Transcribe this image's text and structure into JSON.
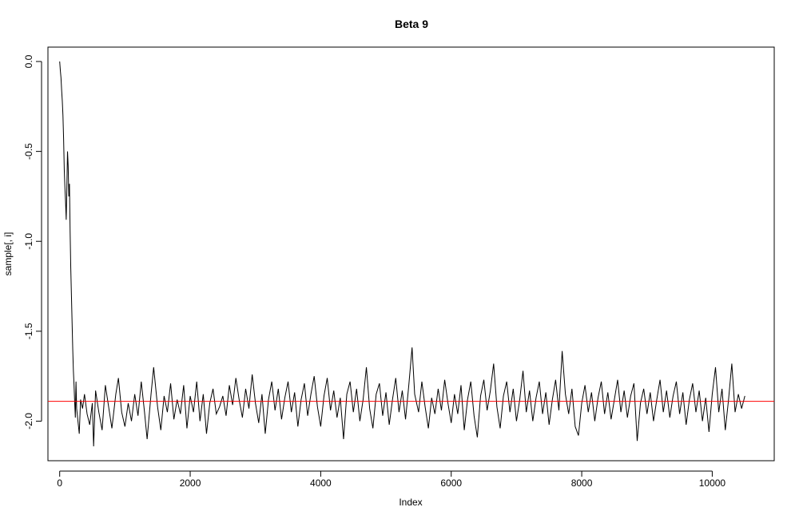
{
  "chart_data": {
    "type": "line",
    "title": "Beta 9",
    "xlabel": "Index",
    "ylabel": "sample[, i]",
    "xlim": [
      -180,
      10950
    ],
    "ylim": [
      -2.22,
      0.08
    ],
    "x_ticks": [
      0,
      2000,
      4000,
      6000,
      8000,
      10000
    ],
    "x_tick_labels": [
      "0",
      "2000",
      "4000",
      "6000",
      "8000",
      "10000"
    ],
    "y_ticks": [
      0.0,
      -0.5,
      -1.0,
      -1.5,
      -2.0
    ],
    "y_tick_labels": [
      "0.0",
      "-0.5",
      "-1.0",
      "-1.5",
      "-2.0"
    ],
    "grid": false,
    "series": [
      {
        "color": "#000000",
        "points": [
          [
            0,
            0.0
          ],
          [
            10,
            -0.05
          ],
          [
            20,
            -0.09
          ],
          [
            30,
            -0.16
          ],
          [
            40,
            -0.22
          ],
          [
            50,
            -0.3
          ],
          [
            60,
            -0.43
          ],
          [
            70,
            -0.6
          ],
          [
            80,
            -0.7
          ],
          [
            90,
            -0.78
          ],
          [
            100,
            -0.88
          ],
          [
            110,
            -0.7
          ],
          [
            120,
            -0.5
          ],
          [
            130,
            -0.58
          ],
          [
            140,
            -0.75
          ],
          [
            150,
            -0.68
          ],
          [
            160,
            -0.95
          ],
          [
            170,
            -1.15
          ],
          [
            180,
            -1.3
          ],
          [
            190,
            -1.45
          ],
          [
            200,
            -1.6
          ],
          [
            210,
            -1.72
          ],
          [
            220,
            -1.8
          ],
          [
            230,
            -1.9
          ],
          [
            240,
            -1.98
          ],
          [
            250,
            -1.78
          ],
          [
            260,
            -1.93
          ],
          [
            280,
            -2.0
          ],
          [
            300,
            -2.07
          ],
          [
            320,
            -1.88
          ],
          [
            350,
            -1.93
          ],
          [
            380,
            -1.85
          ],
          [
            420,
            -1.96
          ],
          [
            460,
            -2.02
          ],
          [
            500,
            -1.9
          ],
          [
            520,
            -2.14
          ],
          [
            550,
            -1.83
          ],
          [
            600,
            -1.95
          ],
          [
            650,
            -2.05
          ],
          [
            700,
            -1.8
          ],
          [
            750,
            -1.92
          ],
          [
            800,
            -2.04
          ],
          [
            860,
            -1.85
          ],
          [
            900,
            -1.76
          ],
          [
            950,
            -1.95
          ],
          [
            1000,
            -2.03
          ],
          [
            1050,
            -1.9
          ],
          [
            1100,
            -2.0
          ],
          [
            1150,
            -1.85
          ],
          [
            1200,
            -1.97
          ],
          [
            1250,
            -1.78
          ],
          [
            1300,
            -1.95
          ],
          [
            1340,
            -2.1
          ],
          [
            1400,
            -1.85
          ],
          [
            1440,
            -1.7
          ],
          [
            1500,
            -1.92
          ],
          [
            1550,
            -2.05
          ],
          [
            1600,
            -1.86
          ],
          [
            1650,
            -1.95
          ],
          [
            1700,
            -1.79
          ],
          [
            1750,
            -1.99
          ],
          [
            1800,
            -1.88
          ],
          [
            1850,
            -1.96
          ],
          [
            1900,
            -1.8
          ],
          [
            1950,
            -2.04
          ],
          [
            2000,
            -1.86
          ],
          [
            2050,
            -1.95
          ],
          [
            2100,
            -1.78
          ],
          [
            2150,
            -2.0
          ],
          [
            2200,
            -1.85
          ],
          [
            2250,
            -2.07
          ],
          [
            2300,
            -1.9
          ],
          [
            2350,
            -1.82
          ],
          [
            2400,
            -1.96
          ],
          [
            2450,
            -1.92
          ],
          [
            2500,
            -1.86
          ],
          [
            2550,
            -1.97
          ],
          [
            2600,
            -1.8
          ],
          [
            2650,
            -1.91
          ],
          [
            2700,
            -1.76
          ],
          [
            2750,
            -1.88
          ],
          [
            2800,
            -1.98
          ],
          [
            2850,
            -1.82
          ],
          [
            2900,
            -1.93
          ],
          [
            2950,
            -1.74
          ],
          [
            3000,
            -1.9
          ],
          [
            3050,
            -2.01
          ],
          [
            3100,
            -1.85
          ],
          [
            3150,
            -2.07
          ],
          [
            3200,
            -1.88
          ],
          [
            3250,
            -1.78
          ],
          [
            3300,
            -1.94
          ],
          [
            3350,
            -1.82
          ],
          [
            3400,
            -1.99
          ],
          [
            3450,
            -1.87
          ],
          [
            3500,
            -1.78
          ],
          [
            3550,
            -1.95
          ],
          [
            3600,
            -1.84
          ],
          [
            3650,
            -2.03
          ],
          [
            3700,
            -1.88
          ],
          [
            3750,
            -1.79
          ],
          [
            3800,
            -1.97
          ],
          [
            3850,
            -1.85
          ],
          [
            3900,
            -1.75
          ],
          [
            3950,
            -1.92
          ],
          [
            4000,
            -2.03
          ],
          [
            4050,
            -1.86
          ],
          [
            4100,
            -1.76
          ],
          [
            4150,
            -1.94
          ],
          [
            4200,
            -1.83
          ],
          [
            4250,
            -1.98
          ],
          [
            4300,
            -1.87
          ],
          [
            4350,
            -2.1
          ],
          [
            4400,
            -1.85
          ],
          [
            4450,
            -1.78
          ],
          [
            4500,
            -1.95
          ],
          [
            4550,
            -1.82
          ],
          [
            4600,
            -2.0
          ],
          [
            4650,
            -1.88
          ],
          [
            4700,
            -1.7
          ],
          [
            4750,
            -1.93
          ],
          [
            4800,
            -2.04
          ],
          [
            4850,
            -1.85
          ],
          [
            4900,
            -1.79
          ],
          [
            4950,
            -1.97
          ],
          [
            5000,
            -1.84
          ],
          [
            5050,
            -2.02
          ],
          [
            5100,
            -1.88
          ],
          [
            5150,
            -1.76
          ],
          [
            5200,
            -1.95
          ],
          [
            5250,
            -1.83
          ],
          [
            5300,
            -1.99
          ],
          [
            5350,
            -1.8
          ],
          [
            5400,
            -1.59
          ],
          [
            5440,
            -1.85
          ],
          [
            5500,
            -1.95
          ],
          [
            5550,
            -1.78
          ],
          [
            5600,
            -1.92
          ],
          [
            5650,
            -2.04
          ],
          [
            5700,
            -1.87
          ],
          [
            5750,
            -1.96
          ],
          [
            5800,
            -1.82
          ],
          [
            5850,
            -1.94
          ],
          [
            5900,
            -1.77
          ],
          [
            5950,
            -1.9
          ],
          [
            6000,
            -2.01
          ],
          [
            6050,
            -1.85
          ],
          [
            6100,
            -1.96
          ],
          [
            6150,
            -1.8
          ],
          [
            6200,
            -2.05
          ],
          [
            6250,
            -1.88
          ],
          [
            6300,
            -1.78
          ],
          [
            6350,
            -1.97
          ],
          [
            6400,
            -2.09
          ],
          [
            6450,
            -1.86
          ],
          [
            6500,
            -1.77
          ],
          [
            6550,
            -1.94
          ],
          [
            6600,
            -1.83
          ],
          [
            6650,
            -1.68
          ],
          [
            6700,
            -1.92
          ],
          [
            6750,
            -2.04
          ],
          [
            6800,
            -1.86
          ],
          [
            6850,
            -1.78
          ],
          [
            6900,
            -1.95
          ],
          [
            6950,
            -1.82
          ],
          [
            7000,
            -2.0
          ],
          [
            7050,
            -1.88
          ],
          [
            7100,
            -1.72
          ],
          [
            7150,
            -1.95
          ],
          [
            7200,
            -1.83
          ],
          [
            7250,
            -2.0
          ],
          [
            7300,
            -1.87
          ],
          [
            7350,
            -1.78
          ],
          [
            7400,
            -1.96
          ],
          [
            7450,
            -1.84
          ],
          [
            7500,
            -2.02
          ],
          [
            7550,
            -1.88
          ],
          [
            7600,
            -1.77
          ],
          [
            7650,
            -1.94
          ],
          [
            7700,
            -1.61
          ],
          [
            7750,
            -1.85
          ],
          [
            7800,
            -1.96
          ],
          [
            7850,
            -1.82
          ],
          [
            7900,
            -2.03
          ],
          [
            7950,
            -2.08
          ],
          [
            8000,
            -1.9
          ],
          [
            8050,
            -1.8
          ],
          [
            8100,
            -1.95
          ],
          [
            8150,
            -1.84
          ],
          [
            8200,
            -2.0
          ],
          [
            8250,
            -1.87
          ],
          [
            8300,
            -1.78
          ],
          [
            8350,
            -1.96
          ],
          [
            8400,
            -1.84
          ],
          [
            8450,
            -1.99
          ],
          [
            8500,
            -1.88
          ],
          [
            8550,
            -1.77
          ],
          [
            8600,
            -1.95
          ],
          [
            8650,
            -1.83
          ],
          [
            8700,
            -1.98
          ],
          [
            8750,
            -1.86
          ],
          [
            8800,
            -1.79
          ],
          [
            8850,
            -2.11
          ],
          [
            8900,
            -1.9
          ],
          [
            8950,
            -1.82
          ],
          [
            9000,
            -1.96
          ],
          [
            9050,
            -1.84
          ],
          [
            9100,
            -2.0
          ],
          [
            9150,
            -1.88
          ],
          [
            9200,
            -1.77
          ],
          [
            9250,
            -1.95
          ],
          [
            9300,
            -1.83
          ],
          [
            9350,
            -1.98
          ],
          [
            9400,
            -1.86
          ],
          [
            9450,
            -1.78
          ],
          [
            9500,
            -1.96
          ],
          [
            9550,
            -1.84
          ],
          [
            9600,
            -2.02
          ],
          [
            9650,
            -1.88
          ],
          [
            9700,
            -1.79
          ],
          [
            9750,
            -1.95
          ],
          [
            9800,
            -1.83
          ],
          [
            9850,
            -2.0
          ],
          [
            9900,
            -1.87
          ],
          [
            9950,
            -2.06
          ],
          [
            10000,
            -1.85
          ],
          [
            10050,
            -1.7
          ],
          [
            10100,
            -1.95
          ],
          [
            10150,
            -1.82
          ],
          [
            10200,
            -2.05
          ],
          [
            10250,
            -1.88
          ],
          [
            10300,
            -1.68
          ],
          [
            10350,
            -1.95
          ],
          [
            10400,
            -1.85
          ],
          [
            10450,
            -1.93
          ],
          [
            10500,
            -1.86
          ]
        ]
      }
    ],
    "hline": {
      "y": -1.89,
      "color": "#ff0000"
    }
  }
}
